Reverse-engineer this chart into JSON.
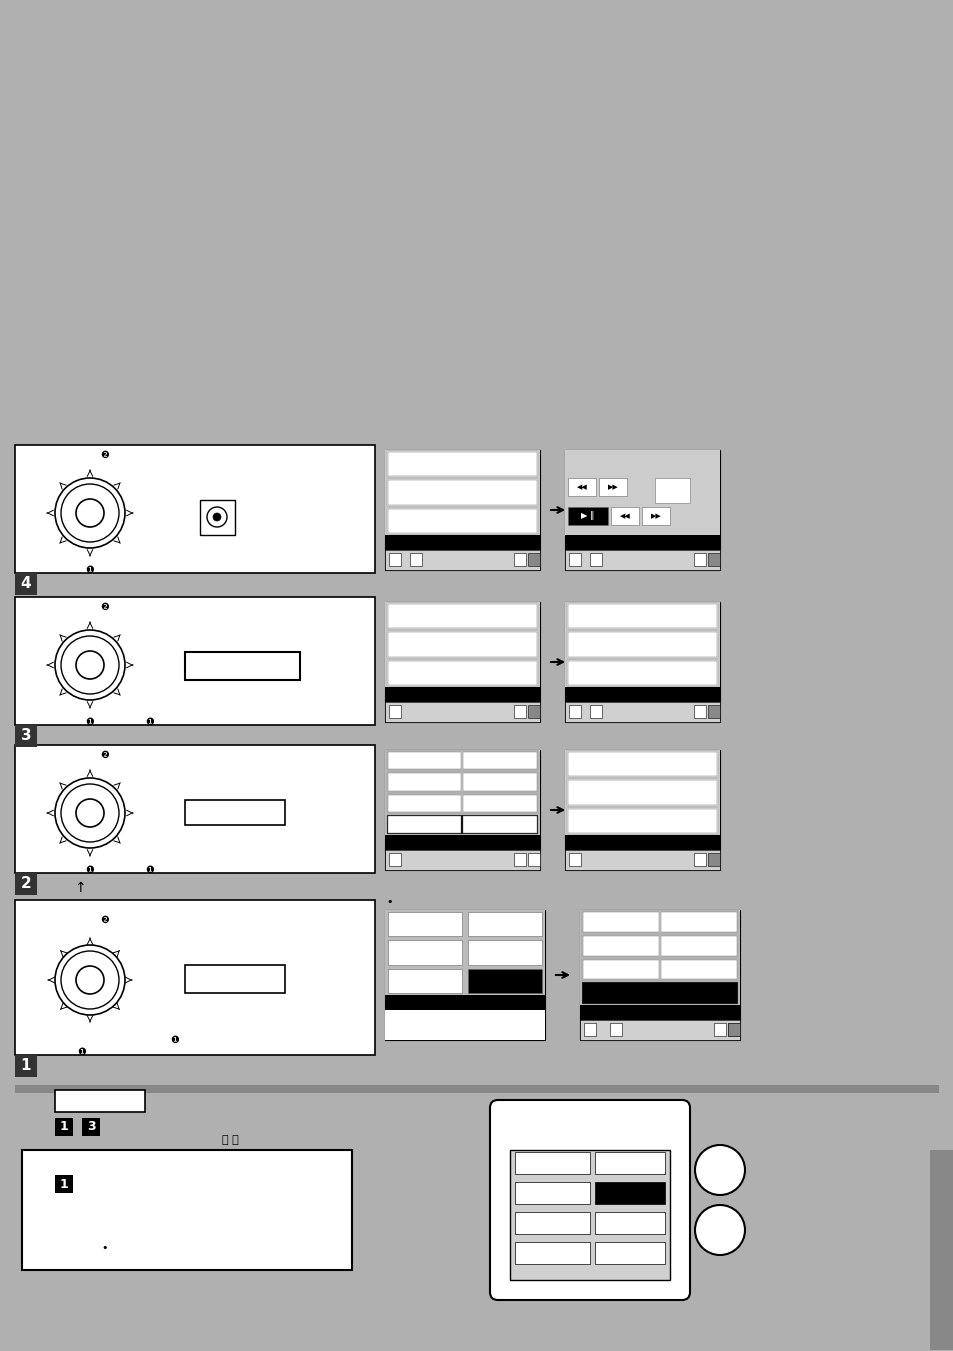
{
  "bg_color": "#b0b0b0",
  "page_bg": "#ffffff",
  "header_bg": "#aaaaaa",
  "section_step_bg": "#333333",
  "section_step_fg": "#ffffff",
  "box_outline": "#000000",
  "screen_bg": "#cccccc",
  "black": "#000000",
  "white": "#ffffff",
  "dark_gray": "#555555",
  "light_gray": "#dddddd",
  "medium_gray": "#999999"
}
